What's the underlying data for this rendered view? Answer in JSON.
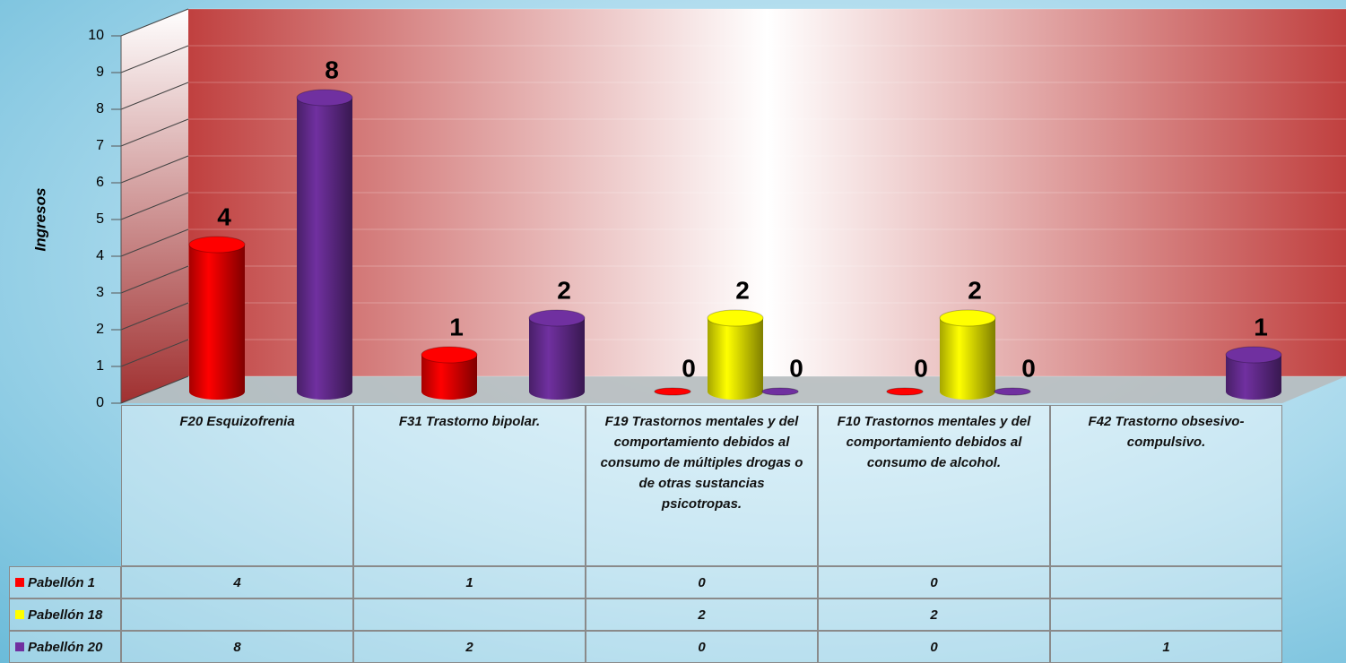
{
  "chart_data": {
    "type": "bar3d",
    "y_axis_label": "Ingresos",
    "categories": [
      "F20 Esquizofrenia",
      "F31 Trastorno bipolar.",
      "F19 Trastornos mentales y del comportamiento debidos al consumo de múltiples drogas o de otras sustancias psicotropas.",
      "F10 Trastornos mentales y del comportamiento debidos al consumo de alcohol.",
      "F42 Trastorno obsesivo-compulsivo."
    ],
    "series": [
      {
        "name": "Pabellón 1",
        "color": "#ff0000",
        "values": [
          4,
          1,
          0,
          0,
          null
        ]
      },
      {
        "name": "Pabellón 18",
        "color": "#ffff00",
        "values": [
          null,
          null,
          2,
          2,
          null
        ]
      },
      {
        "name": "Pabellón 20",
        "color": "#7030a0",
        "values": [
          8,
          2,
          0,
          0,
          1
        ]
      }
    ],
    "ylim": [
      0,
      10
    ],
    "yticks": [
      0,
      1,
      2,
      3,
      4,
      5,
      6,
      7,
      8,
      9,
      10
    ],
    "grid": true
  }
}
